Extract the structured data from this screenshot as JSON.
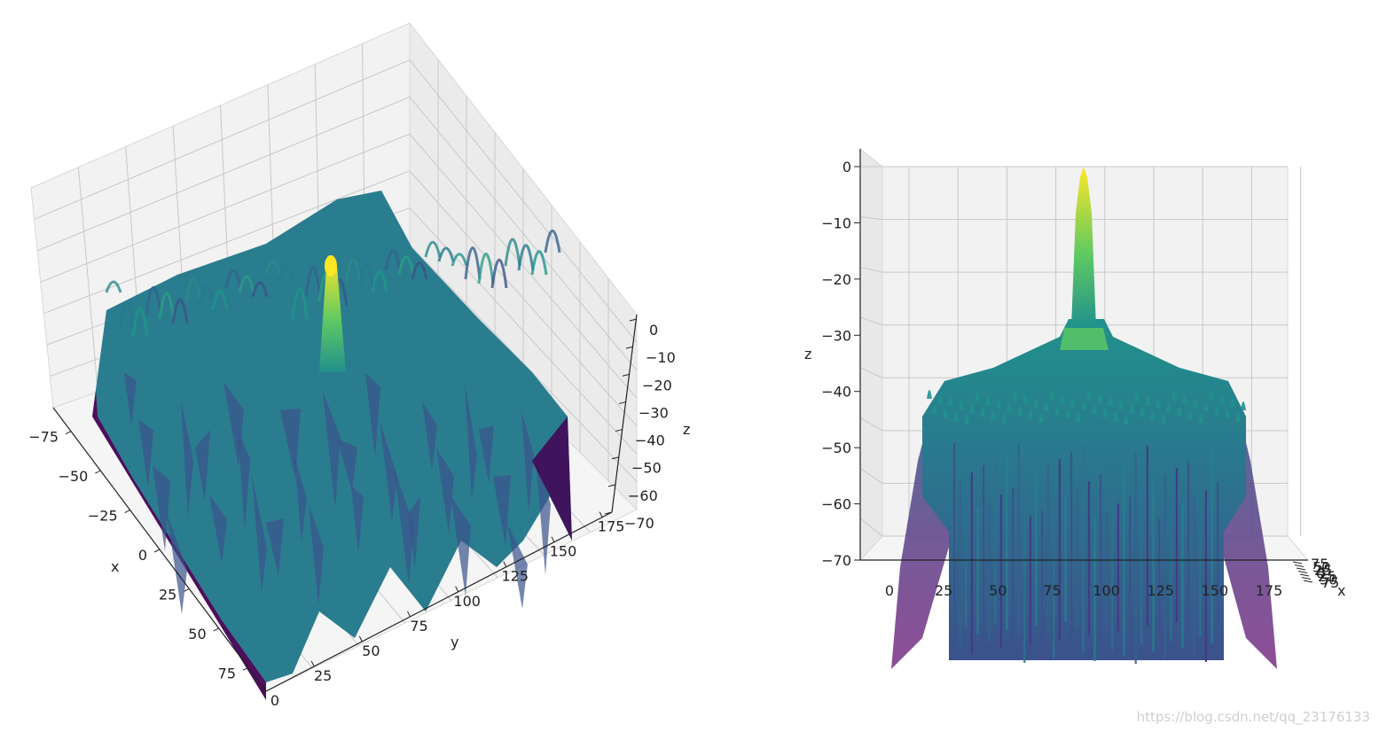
{
  "chart_data": [
    {
      "type": "surface3d",
      "view": "oblique",
      "colormap": "viridis",
      "xlabel": "x",
      "ylabel": "y",
      "zlabel": "z",
      "x_ticks": [
        -75,
        -50,
        -25,
        0,
        25,
        50,
        75
      ],
      "y_ticks": [
        0,
        25,
        50,
        75,
        100,
        125,
        150,
        175
      ],
      "z_ticks": [
        0,
        -10,
        -20,
        -30,
        -40,
        -50,
        -60,
        -70
      ],
      "x_tick_labels": [
        "−75",
        "−50",
        "−25",
        "0",
        "25",
        "50",
        "75"
      ],
      "y_tick_labels": [
        "0",
        "25",
        "50",
        "75",
        "100",
        "125",
        "150",
        "175"
      ],
      "z_tick_labels": [
        "0",
        "−10",
        "−20",
        "−30",
        "−40",
        "−50",
        "−60",
        "−70"
      ],
      "xlim": [
        -90,
        90
      ],
      "ylim": [
        0,
        180
      ],
      "zlim": [
        -70,
        0
      ],
      "peak": {
        "x": 0,
        "y": 90,
        "z": 0
      },
      "grid": true
    },
    {
      "type": "surface3d",
      "view": "side (y–z plane)",
      "colormap": "viridis",
      "xlabel": "x",
      "zlabel": "z",
      "y_ticks": [
        0,
        25,
        50,
        75,
        100,
        125,
        150,
        175
      ],
      "z_ticks": [
        0,
        -10,
        -20,
        -30,
        -40,
        -50,
        -60,
        -70
      ],
      "y_tick_labels": [
        "0",
        "25",
        "50",
        "75",
        "100",
        "125",
        "150",
        "175"
      ],
      "z_tick_labels": [
        "0",
        "−10",
        "−20",
        "−30",
        "−40",
        "−50",
        "−60",
        "−70"
      ],
      "x_tick_labels": [
        "75",
        "50",
        "25",
        "0",
        "25",
        "50",
        "75"
      ],
      "ylim": [
        0,
        180
      ],
      "zlim": [
        -70,
        0
      ],
      "peak": {
        "y": 90,
        "z": 0
      },
      "grid": true
    }
  ],
  "watermark": "https://blog.csdn.net/qq_23176133",
  "colors": {
    "viridis_low": "#440154",
    "viridis_mid_low": "#3b528b",
    "viridis_mid": "#21918c",
    "viridis_mid_high": "#5ec962",
    "viridis_high": "#fde725",
    "pane": "#f2f2f2",
    "grid": "#c8c8c8"
  }
}
